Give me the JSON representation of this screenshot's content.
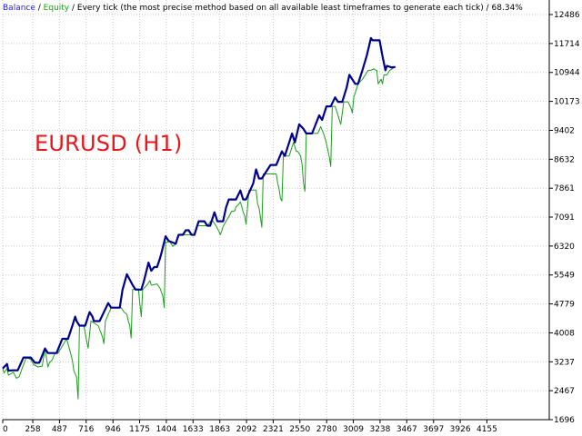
{
  "header": {
    "balance_label": "Balance",
    "separator_1": " / ",
    "equity_label": "Equity",
    "separator_2": " / ",
    "description": "Every tick (the most precise method based on all available least timeframes to generate each tick)",
    "separator_3": " / ",
    "quality": "68.34%"
  },
  "chart_data": {
    "type": "line",
    "title": "EURUSD (H1)",
    "xlabel": "",
    "ylabel": "",
    "xlim": [
      0,
      4690
    ],
    "ylim": [
      1696,
      12486
    ],
    "x_ticks": [
      0,
      258,
      487,
      716,
      946,
      1175,
      1404,
      1633,
      1863,
      2092,
      2321,
      2550,
      2780,
      3009,
      3238,
      3467,
      3697,
      3926,
      4155
    ],
    "x_tick_labels": [
      "0",
      "258",
      "487",
      "716",
      "946",
      "1175",
      "1404",
      "1633",
      "1863",
      "2092",
      "2321",
      "2550",
      "2780",
      "3009",
      "3238",
      "3467",
      "3697",
      "3926",
      "4155"
    ],
    "y_ticks": [
      1696,
      2467,
      3237,
      4008,
      4779,
      5549,
      6320,
      7091,
      7861,
      8632,
      9402,
      10173,
      10944,
      11714,
      12486
    ],
    "y_tick_labels": [
      "1696",
      "2467",
      "3237",
      "4008",
      "4779",
      "5549",
      "6320",
      "7091",
      "7861",
      "8632",
      "9402",
      "10173",
      "10944",
      "11714",
      "12486"
    ],
    "grid": true,
    "legend": "header-text",
    "colors": {
      "balance": "#00008b",
      "equity": "#1aa01a",
      "grid": "#c8c8c8",
      "axis": "#000000"
    },
    "series": [
      {
        "name": "Balance",
        "points": [
          [
            0,
            3060
          ],
          [
            37,
            3180
          ],
          [
            49,
            3000
          ],
          [
            80,
            3010
          ],
          [
            129,
            3010
          ],
          [
            178,
            3350
          ],
          [
            240,
            3350
          ],
          [
            277,
            3210
          ],
          [
            314,
            3210
          ],
          [
            363,
            3590
          ],
          [
            388,
            3470
          ],
          [
            462,
            3470
          ],
          [
            511,
            3850
          ],
          [
            560,
            3850
          ],
          [
            598,
            4200
          ],
          [
            622,
            4440
          ],
          [
            634,
            4320
          ],
          [
            659,
            4200
          ],
          [
            708,
            4200
          ],
          [
            745,
            4560
          ],
          [
            770,
            4440
          ],
          [
            782,
            4320
          ],
          [
            831,
            4320
          ],
          [
            905,
            4800
          ],
          [
            930,
            4680
          ],
          [
            1004,
            4680
          ],
          [
            1028,
            5150
          ],
          [
            1065,
            5570
          ],
          [
            1115,
            5280
          ],
          [
            1139,
            5160
          ],
          [
            1189,
            5160
          ],
          [
            1213,
            5400
          ],
          [
            1251,
            5880
          ],
          [
            1275,
            5660
          ],
          [
            1300,
            5760
          ],
          [
            1324,
            5760
          ],
          [
            1349,
            5990
          ],
          [
            1361,
            6120
          ],
          [
            1398,
            6580
          ],
          [
            1423,
            6460
          ],
          [
            1484,
            6380
          ],
          [
            1509,
            6620
          ],
          [
            1546,
            6620
          ],
          [
            1571,
            6740
          ],
          [
            1596,
            6740
          ],
          [
            1620,
            6620
          ],
          [
            1645,
            6620
          ],
          [
            1669,
            6860
          ],
          [
            1682,
            6980
          ],
          [
            1731,
            6980
          ],
          [
            1756,
            6860
          ],
          [
            1780,
            6860
          ],
          [
            1817,
            7220
          ],
          [
            1830,
            7100
          ],
          [
            1842,
            6980
          ],
          [
            1891,
            6980
          ],
          [
            1916,
            7340
          ],
          [
            1940,
            7560
          ],
          [
            2002,
            7560
          ],
          [
            2039,
            7800
          ],
          [
            2063,
            7560
          ],
          [
            2088,
            7560
          ],
          [
            2150,
            7990
          ],
          [
            2174,
            8360
          ],
          [
            2199,
            8120
          ],
          [
            2223,
            8120
          ],
          [
            2273,
            8360
          ],
          [
            2298,
            8480
          ],
          [
            2347,
            8480
          ],
          [
            2396,
            8840
          ],
          [
            2421,
            8720
          ],
          [
            2458,
            9080
          ],
          [
            2483,
            9320
          ],
          [
            2507,
            9080
          ],
          [
            2544,
            9560
          ],
          [
            2581,
            9440
          ],
          [
            2605,
            9320
          ],
          [
            2655,
            9320
          ],
          [
            2716,
            9800
          ],
          [
            2741,
            9680
          ],
          [
            2778,
            10040
          ],
          [
            2815,
            10040
          ],
          [
            2852,
            10280
          ],
          [
            2877,
            10160
          ],
          [
            2914,
            10160
          ],
          [
            2951,
            10540
          ],
          [
            2975,
            10880
          ],
          [
            3000,
            10760
          ],
          [
            3025,
            10640
          ],
          [
            3049,
            10640
          ],
          [
            3086,
            11000
          ],
          [
            3123,
            11380
          ],
          [
            3160,
            11860
          ],
          [
            3173,
            11800
          ],
          [
            3234,
            11800
          ],
          [
            3259,
            11380
          ],
          [
            3284,
            11000
          ],
          [
            3296,
            11120
          ],
          [
            3333,
            11080
          ],
          [
            3345,
            11080
          ],
          [
            3370,
            11090
          ]
        ]
      },
      {
        "name": "Equity",
        "points": [
          [
            0,
            3060
          ],
          [
            12,
            2940
          ],
          [
            37,
            3060
          ],
          [
            49,
            2880
          ],
          [
            92,
            2960
          ],
          [
            117,
            2800
          ],
          [
            141,
            2840
          ],
          [
            166,
            3060
          ],
          [
            203,
            3350
          ],
          [
            240,
            3300
          ],
          [
            265,
            3160
          ],
          [
            302,
            3100
          ],
          [
            339,
            3120
          ],
          [
            363,
            3590
          ],
          [
            388,
            3100
          ],
          [
            400,
            3210
          ],
          [
            425,
            3290
          ],
          [
            449,
            3470
          ],
          [
            474,
            3460
          ],
          [
            548,
            3850
          ],
          [
            560,
            3720
          ],
          [
            597,
            3290
          ],
          [
            610,
            3000
          ],
          [
            634,
            2830
          ],
          [
            647,
            2250
          ],
          [
            659,
            4200
          ],
          [
            696,
            4200
          ],
          [
            721,
            3780
          ],
          [
            733,
            3600
          ],
          [
            757,
            4320
          ],
          [
            819,
            4200
          ],
          [
            856,
            3900
          ],
          [
            868,
            3720
          ],
          [
            881,
            4320
          ],
          [
            930,
            4680
          ],
          [
            1016,
            4680
          ],
          [
            1041,
            4560
          ],
          [
            1065,
            4500
          ],
          [
            1078,
            4320
          ],
          [
            1090,
            4200
          ],
          [
            1102,
            3870
          ],
          [
            1115,
            5160
          ],
          [
            1164,
            5180
          ],
          [
            1176,
            4800
          ],
          [
            1189,
            4440
          ],
          [
            1201,
            5160
          ],
          [
            1238,
            5280
          ],
          [
            1263,
            5400
          ],
          [
            1275,
            5280
          ],
          [
            1324,
            5310
          ],
          [
            1337,
            5250
          ],
          [
            1349,
            5200
          ],
          [
            1361,
            5100
          ],
          [
            1374,
            4980
          ],
          [
            1386,
            4680
          ],
          [
            1398,
            6420
          ],
          [
            1435,
            6430
          ],
          [
            1460,
            6310
          ],
          [
            1484,
            6380
          ],
          [
            1509,
            6620
          ],
          [
            1546,
            6620
          ],
          [
            1620,
            6620
          ],
          [
            1645,
            6620
          ],
          [
            1669,
            6860
          ],
          [
            1731,
            6860
          ],
          [
            1756,
            6860
          ],
          [
            1793,
            7020
          ],
          [
            1805,
            6980
          ],
          [
            1830,
            6860
          ],
          [
            1854,
            6720
          ],
          [
            1867,
            6620
          ],
          [
            1879,
            6720
          ],
          [
            1891,
            6840
          ],
          [
            1916,
            6980
          ],
          [
            1940,
            7100
          ],
          [
            1965,
            7250
          ],
          [
            1990,
            7250
          ],
          [
            2002,
            7360
          ],
          [
            2027,
            7440
          ],
          [
            2039,
            7500
          ],
          [
            2051,
            7380
          ],
          [
            2063,
            7220
          ],
          [
            2076,
            7140
          ],
          [
            2088,
            6900
          ],
          [
            2113,
            7810
          ],
          [
            2150,
            7810
          ],
          [
            2174,
            7810
          ],
          [
            2187,
            7440
          ],
          [
            2199,
            7340
          ],
          [
            2211,
            7110
          ],
          [
            2223,
            6820
          ],
          [
            2236,
            8240
          ],
          [
            2260,
            8240
          ],
          [
            2298,
            8240
          ],
          [
            2322,
            8240
          ],
          [
            2347,
            8240
          ],
          [
            2359,
            8000
          ],
          [
            2371,
            7850
          ],
          [
            2384,
            7580
          ],
          [
            2396,
            7520
          ],
          [
            2408,
            8720
          ],
          [
            2433,
            8720
          ],
          [
            2458,
            8720
          ],
          [
            2495,
            9080
          ],
          [
            2520,
            8840
          ],
          [
            2532,
            8840
          ],
          [
            2556,
            8720
          ],
          [
            2569,
            8500
          ],
          [
            2581,
            8000
          ],
          [
            2593,
            7780
          ],
          [
            2605,
            9320
          ],
          [
            2630,
            9320
          ],
          [
            2655,
            9320
          ],
          [
            2704,
            9320
          ],
          [
            2728,
            9500
          ],
          [
            2753,
            9320
          ],
          [
            2765,
            9200
          ],
          [
            2778,
            9040
          ],
          [
            2790,
            8880
          ],
          [
            2803,
            8680
          ],
          [
            2815,
            8440
          ],
          [
            2828,
            10040
          ],
          [
            2852,
            10040
          ],
          [
            2877,
            9800
          ],
          [
            2901,
            9560
          ],
          [
            2926,
            10160
          ],
          [
            2963,
            10160
          ],
          [
            2988,
            10000
          ],
          [
            3000,
            9860
          ],
          [
            3012,
            10280
          ],
          [
            3037,
            10520
          ],
          [
            3049,
            10640
          ],
          [
            3086,
            10760
          ],
          [
            3111,
            10880
          ],
          [
            3136,
            11000
          ],
          [
            3160,
            11000
          ],
          [
            3185,
            11040
          ],
          [
            3197,
            11010
          ],
          [
            3210,
            11000
          ],
          [
            3222,
            10640
          ],
          [
            3247,
            10760
          ],
          [
            3259,
            10640
          ],
          [
            3271,
            10880
          ],
          [
            3296,
            10880
          ],
          [
            3321,
            11000
          ],
          [
            3345,
            11050
          ],
          [
            3370,
            11090
          ]
        ]
      }
    ]
  }
}
